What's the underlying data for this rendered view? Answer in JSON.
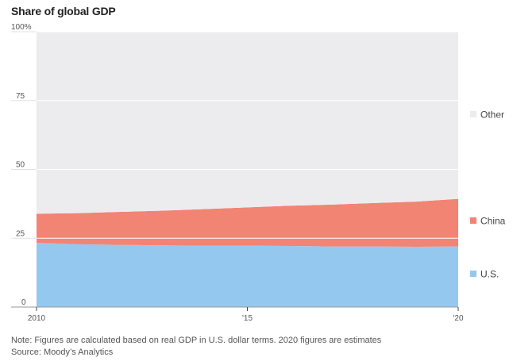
{
  "chart_data": {
    "type": "area",
    "stacked": true,
    "title": "Share of global GDP",
    "x": [
      "2010",
      "2011",
      "2012",
      "2013",
      "2014",
      "2015",
      "2016",
      "2017",
      "2018",
      "2019",
      "2020"
    ],
    "x_ticks": [
      "2010",
      "'15",
      "'20"
    ],
    "y_ticks": [
      "0",
      "25",
      "50",
      "75",
      "100%"
    ],
    "ylim": [
      0,
      100
    ],
    "grid": true,
    "legend_placement": "right",
    "series": [
      {
        "name": "U.S.",
        "color": "#95c8ef",
        "values": [
          23.3,
          22.8,
          22.6,
          22.4,
          22.3,
          22.3,
          22.2,
          22.0,
          22.0,
          21.9,
          22.0
        ]
      },
      {
        "name": "China",
        "color": "#f28474",
        "values": [
          10.6,
          11.3,
          12.0,
          12.6,
          13.3,
          13.9,
          14.6,
          15.2,
          15.8,
          16.4,
          17.3
        ]
      },
      {
        "name": "Other",
        "color": "#ececee",
        "values": [
          66.1,
          65.9,
          65.4,
          65.0,
          64.4,
          63.8,
          63.2,
          62.8,
          62.2,
          61.7,
          60.7
        ]
      }
    ]
  },
  "notes": {
    "note": "Note: Figures are calculated based on real GDP in U.S. dollar terms. 2020 figures are estimates",
    "source": "Source: Moody’s Analytics"
  }
}
